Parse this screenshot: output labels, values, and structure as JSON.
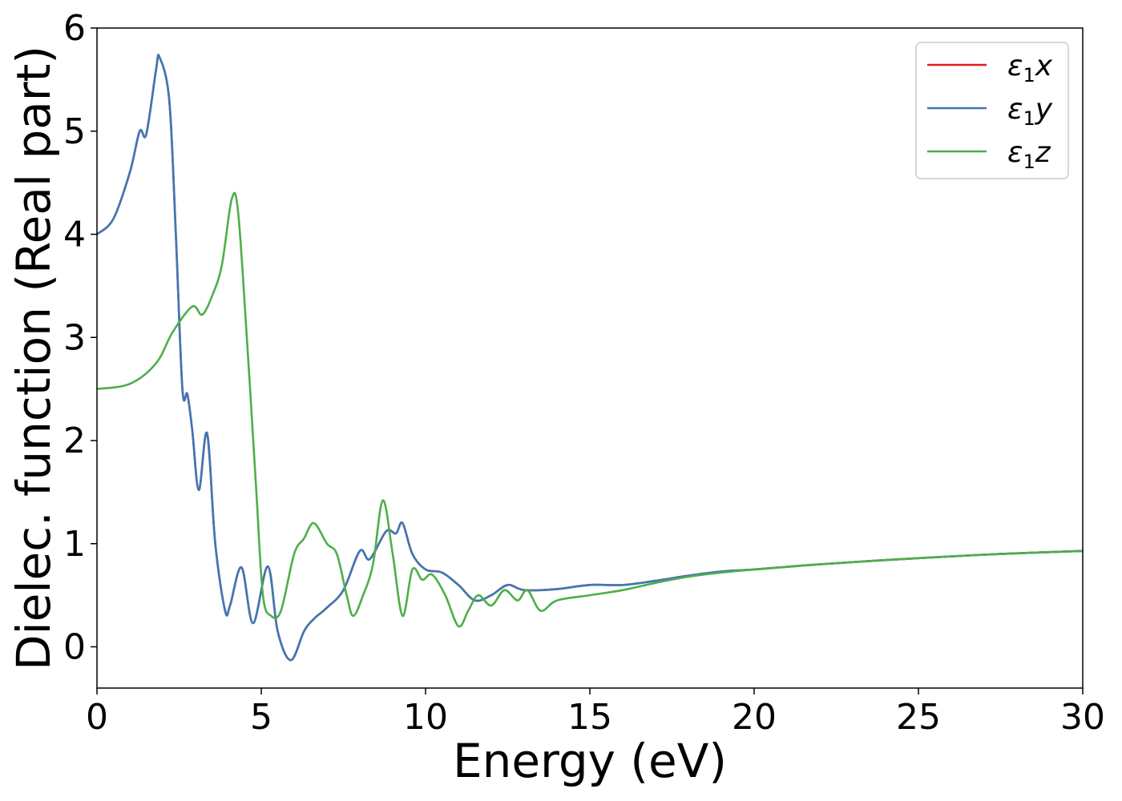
{
  "chart_data": {
    "type": "line",
    "title": "",
    "xlabel": "Energy (eV)",
    "ylabel": "Dielec. function (Real part)",
    "xlim": [
      0,
      30
    ],
    "ylim": [
      -0.4,
      6.0
    ],
    "xticks": [
      0,
      5,
      10,
      15,
      20,
      25,
      30
    ],
    "xtick_labels": [
      "0",
      "5",
      "10",
      "15",
      "20",
      "25",
      "30"
    ],
    "yticks": [
      0,
      1,
      2,
      3,
      4,
      5,
      6
    ],
    "ytick_labels": [
      "0",
      "1",
      "2",
      "3",
      "4",
      "5",
      "6"
    ],
    "grid": false,
    "legend": "top-right",
    "series": [
      {
        "name": "ε1x",
        "label_base": "ε",
        "label_sub": "1",
        "label_var": "x",
        "color": "#e41a1c",
        "x": [
          0,
          0.5,
          1.0,
          1.3,
          1.5,
          1.8,
          1.9,
          2.2,
          2.4,
          2.6,
          2.75,
          2.9,
          3.1,
          3.35,
          3.6,
          3.9,
          4.05,
          4.4,
          4.75,
          5.2,
          5.5,
          5.9,
          6.3,
          6.6,
          7.0,
          7.5,
          8.0,
          8.3,
          8.8,
          9.1,
          9.3,
          9.6,
          10.0,
          10.5,
          11.0,
          11.5,
          12.0,
          12.5,
          13.0,
          14.0,
          15.0,
          16.0,
          17.0,
          18.0,
          19.0,
          20.0,
          22.0,
          25.0,
          27.5,
          30.0
        ],
        "y": [
          4.0,
          4.15,
          4.6,
          5.0,
          4.97,
          5.6,
          5.72,
          5.3,
          4.0,
          2.5,
          2.45,
          2.1,
          1.52,
          2.07,
          1.0,
          0.35,
          0.4,
          0.77,
          0.23,
          0.78,
          0.15,
          -0.13,
          0.15,
          0.27,
          0.38,
          0.55,
          0.93,
          0.85,
          1.12,
          1.1,
          1.2,
          0.9,
          0.75,
          0.72,
          0.6,
          0.45,
          0.5,
          0.6,
          0.55,
          0.56,
          0.6,
          0.6,
          0.64,
          0.69,
          0.73,
          0.75,
          0.8,
          0.86,
          0.9,
          0.93
        ]
      },
      {
        "name": "ε1y",
        "label_base": "ε",
        "label_sub": "1",
        "label_var": "y",
        "color": "#3d78b5",
        "x": [
          0,
          0.5,
          1.0,
          1.3,
          1.5,
          1.8,
          1.9,
          2.2,
          2.4,
          2.6,
          2.75,
          2.9,
          3.1,
          3.35,
          3.6,
          3.9,
          4.05,
          4.4,
          4.75,
          5.2,
          5.5,
          5.9,
          6.3,
          6.6,
          7.0,
          7.5,
          8.0,
          8.3,
          8.8,
          9.1,
          9.3,
          9.6,
          10.0,
          10.5,
          11.0,
          11.5,
          12.0,
          12.5,
          13.0,
          14.0,
          15.0,
          16.0,
          17.0,
          18.0,
          19.0,
          20.0,
          22.0,
          25.0,
          27.5,
          30.0
        ],
        "y": [
          4.0,
          4.15,
          4.6,
          5.0,
          4.97,
          5.6,
          5.72,
          5.3,
          4.0,
          2.5,
          2.45,
          2.1,
          1.52,
          2.07,
          1.0,
          0.35,
          0.4,
          0.77,
          0.23,
          0.78,
          0.15,
          -0.13,
          0.15,
          0.27,
          0.38,
          0.55,
          0.93,
          0.85,
          1.12,
          1.1,
          1.2,
          0.9,
          0.75,
          0.72,
          0.6,
          0.45,
          0.5,
          0.6,
          0.55,
          0.56,
          0.6,
          0.6,
          0.64,
          0.69,
          0.73,
          0.75,
          0.8,
          0.86,
          0.9,
          0.93
        ]
      },
      {
        "name": "ε1z",
        "label_base": "ε",
        "label_sub": "1",
        "label_var": "z",
        "color": "#4daf4a",
        "x": [
          0,
          1.0,
          1.8,
          2.3,
          2.9,
          3.2,
          3.5,
          3.8,
          4.1,
          4.3,
          4.6,
          4.85,
          5.05,
          5.3,
          5.6,
          6.0,
          6.3,
          6.6,
          7.0,
          7.3,
          7.6,
          7.8,
          8.1,
          8.4,
          8.7,
          9.0,
          9.3,
          9.6,
          9.9,
          10.2,
          10.6,
          11.0,
          11.3,
          11.6,
          12.0,
          12.4,
          12.8,
          13.1,
          13.5,
          14.0,
          15.0,
          16.0,
          17.0,
          18.0,
          19.0,
          20.0,
          22.0,
          25.0,
          27.5,
          30.0
        ],
        "y": [
          2.5,
          2.55,
          2.75,
          3.05,
          3.3,
          3.22,
          3.4,
          3.7,
          4.34,
          4.2,
          2.8,
          1.5,
          0.5,
          0.3,
          0.35,
          0.9,
          1.05,
          1.2,
          1.0,
          0.9,
          0.5,
          0.3,
          0.5,
          0.8,
          1.42,
          0.9,
          0.3,
          0.75,
          0.65,
          0.7,
          0.5,
          0.2,
          0.35,
          0.5,
          0.4,
          0.55,
          0.45,
          0.55,
          0.35,
          0.45,
          0.5,
          0.55,
          0.62,
          0.68,
          0.72,
          0.75,
          0.8,
          0.86,
          0.9,
          0.93
        ]
      }
    ]
  }
}
